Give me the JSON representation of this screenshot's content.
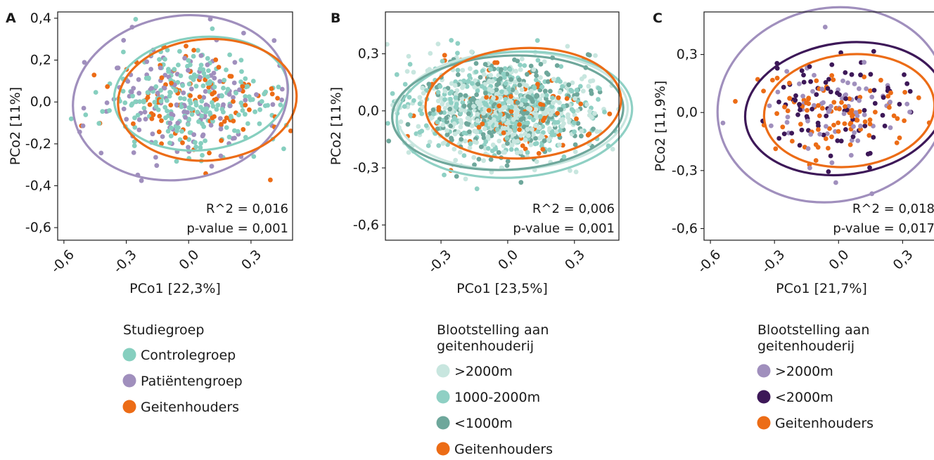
{
  "chart_data": [
    {
      "type": "scatter",
      "panel": "A",
      "xlabel": "PCo1 [22,3%]",
      "ylabel": "PCo2 [11%]",
      "xlim": [
        -0.63,
        0.5
      ],
      "ylim": [
        -0.66,
        0.43
      ],
      "xticks": [
        -0.6,
        -0.3,
        0.0,
        0.3
      ],
      "xtick_labels": [
        "-0,6",
        "-0,3",
        "0,0",
        "0,3"
      ],
      "yticks": [
        0.4,
        0.2,
        0.0,
        -0.2,
        -0.4,
        -0.6
      ],
      "ytick_labels": [
        "0,4",
        "0,2",
        "0,0",
        "-0,2",
        "-0,4",
        "-0,6"
      ],
      "stats": [
        "R^2 = 0,016",
        "p-value = 0,001"
      ],
      "legend_title": [
        "Studiegroep"
      ],
      "series": [
        {
          "name": "Controlegroep",
          "color": "#86cfbf",
          "n": 240,
          "center": [
            0.02,
            0.0
          ],
          "spread": [
            0.2,
            0.12
          ],
          "ellipse": {
            "cx": 0.06,
            "cy": 0.04,
            "rx": 0.42,
            "ry": 0.27,
            "angle": -6
          }
        },
        {
          "name": "Patiëntengroep",
          "color": "#a08fbd",
          "n": 150,
          "center": [
            -0.02,
            0.0
          ],
          "spread": [
            0.22,
            0.14
          ],
          "ellipse": {
            "cx": -0.04,
            "cy": 0.02,
            "rx": 0.52,
            "ry": 0.39,
            "angle": -10
          }
        },
        {
          "name": "Geitenhouders",
          "color": "#ec6c16",
          "n": 90,
          "center": [
            0.05,
            0.0
          ],
          "spread": [
            0.2,
            0.12
          ],
          "ellipse": {
            "cx": 0.09,
            "cy": 0.01,
            "rx": 0.43,
            "ry": 0.29,
            "angle": -4
          }
        }
      ]
    },
    {
      "type": "scatter",
      "panel": "B",
      "xlabel": "PCo1 [23,5%]",
      "ylabel": "PCo2 [11%]",
      "xlim": [
        -0.55,
        0.5
      ],
      "ylim": [
        -0.68,
        0.52
      ],
      "xticks": [
        -0.3,
        0.0,
        0.3
      ],
      "xtick_labels": [
        "-0,3",
        "0,0",
        "0,3"
      ],
      "yticks": [
        0.3,
        0.0,
        -0.3,
        -0.6
      ],
      "ytick_labels": [
        "0,3",
        "0,0",
        "-0,3",
        "-0,6"
      ],
      "stats": [
        "R^2 = 0,006",
        "p-value = 0,001"
      ],
      "legend_title": [
        "Blootstelling aan",
        "geitenhouderij"
      ],
      "series": [
        {
          "name": ">2000m",
          "color": "#c8e6df",
          "n": 450,
          "center": [
            -0.02,
            0.0
          ],
          "spread": [
            0.22,
            0.12
          ],
          "ellipse": {
            "cx": 0.02,
            "cy": 0.0,
            "rx": 0.52,
            "ry": 0.31,
            "angle": -2
          }
        },
        {
          "name": "1000-2000m",
          "color": "#8fd0c4",
          "n": 350,
          "center": [
            0.0,
            0.0
          ],
          "spread": [
            0.21,
            0.12
          ],
          "ellipse": {
            "cx": 0.03,
            "cy": -0.02,
            "rx": 0.53,
            "ry": 0.33,
            "angle": -4
          }
        },
        {
          "name": "<1000m",
          "color": "#6ea79b",
          "n": 300,
          "center": [
            0.0,
            0.0
          ],
          "spread": [
            0.21,
            0.12
          ],
          "ellipse": {
            "cx": 0.0,
            "cy": -0.01,
            "rx": 0.52,
            "ry": 0.3,
            "angle": -3
          }
        },
        {
          "name": "Geitenhouders",
          "color": "#ec6c16",
          "n": 90,
          "center": [
            0.02,
            0.02
          ],
          "spread": [
            0.18,
            0.12
          ],
          "ellipse": {
            "cx": 0.07,
            "cy": 0.04,
            "rx": 0.44,
            "ry": 0.29,
            "angle": -3
          }
        }
      ]
    },
    {
      "type": "scatter",
      "panel": "C",
      "xlabel": "PCo1 [21,7%]",
      "ylabel": "PCo2 [11,9%]",
      "xlim": [
        -0.63,
        0.47
      ],
      "ylim": [
        -0.66,
        0.52
      ],
      "xticks": [
        -0.6,
        -0.3,
        0.0,
        0.3
      ],
      "xtick_labels": [
        "-0,6",
        "-0,3",
        "0,0",
        "0,3"
      ],
      "yticks": [
        0.3,
        0.0,
        -0.3,
        -0.6
      ],
      "ytick_labels": [
        "0,3",
        "0,0",
        "-0,3",
        "-0,6"
      ],
      "stats": [
        "R^2 = 0,018",
        "p-value = 0,017"
      ],
      "legend_title": [
        "Blootstelling aan",
        "geitenhouderij"
      ],
      "series": [
        {
          "name": ">2000m",
          "color": "#a08fbd",
          "n": 70,
          "center": [
            -0.05,
            0.0
          ],
          "spread": [
            0.2,
            0.14
          ],
          "ellipse": {
            "cx": -0.03,
            "cy": 0.04,
            "rx": 0.54,
            "ry": 0.5,
            "angle": -12
          }
        },
        {
          "name": "<2000m",
          "color": "#3d1858",
          "n": 80,
          "center": [
            0.0,
            0.02
          ],
          "spread": [
            0.19,
            0.13
          ],
          "ellipse": {
            "cx": 0.03,
            "cy": 0.02,
            "rx": 0.47,
            "ry": 0.34,
            "angle": -8
          }
        },
        {
          "name": "Geitenhouders",
          "color": "#ec6c16",
          "n": 90,
          "center": [
            0.02,
            0.0
          ],
          "spread": [
            0.19,
            0.12
          ],
          "ellipse": {
            "cx": 0.05,
            "cy": 0.01,
            "rx": 0.4,
            "ry": 0.29,
            "angle": -6
          }
        }
      ]
    }
  ]
}
